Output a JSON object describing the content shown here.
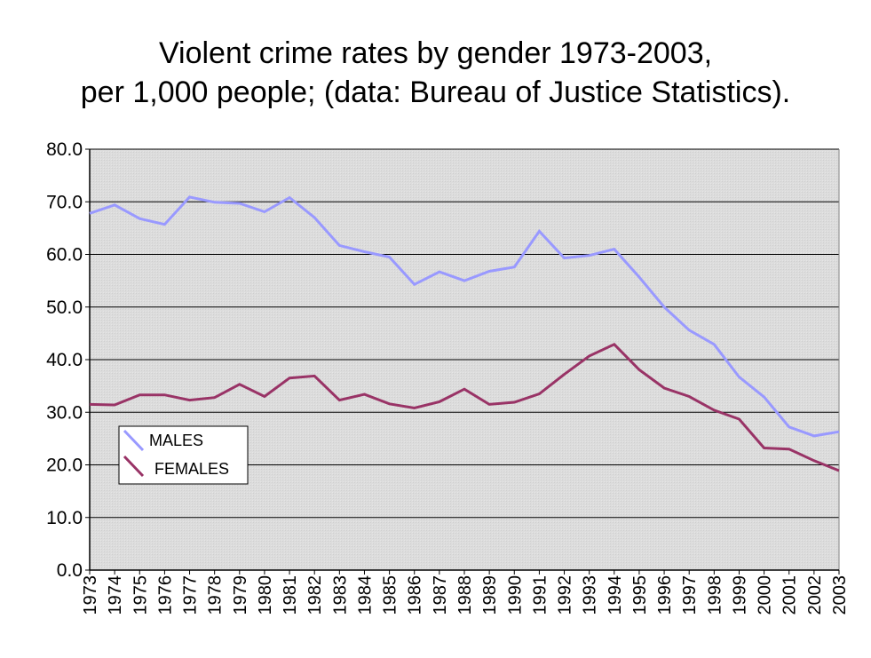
{
  "chart_data": {
    "type": "line",
    "title_lines": [
      "Violent crime rates by gender 1973-2003,",
      "per 1,000 people; (data: Bureau of Justice Statistics)."
    ],
    "xlabel": "",
    "ylabel": "",
    "ylim": [
      0,
      80
    ],
    "yticks": [
      "0.0",
      "10.0",
      "20.0",
      "30.0",
      "40.0",
      "50.0",
      "60.0",
      "70.0",
      "80.0"
    ],
    "grid": true,
    "legend_position": "left",
    "categories": [
      "1973",
      "1974",
      "1975",
      "1976",
      "1977",
      "1978",
      "1979",
      "1980",
      "1981",
      "1982",
      "1983",
      "1984",
      "1985",
      "1986",
      "1987",
      "1988",
      "1989",
      "1990",
      "1991",
      "1992",
      "1993",
      "1994",
      "1995",
      "1996",
      "1997",
      "1998",
      "1999",
      "2000",
      "2001",
      "2002",
      "2003"
    ],
    "series": [
      {
        "name": "MALES",
        "color": "#9999ff",
        "values": [
          67.8,
          69.4,
          66.8,
          65.7,
          70.9,
          69.9,
          69.7,
          68.1,
          70.8,
          67.0,
          61.7,
          60.5,
          59.5,
          54.3,
          56.7,
          55.0,
          56.8,
          57.6,
          64.4,
          59.3,
          59.8,
          61.0,
          55.7,
          50.0,
          45.6,
          42.9,
          36.7,
          32.9,
          27.2,
          25.5,
          26.3
        ]
      },
      {
        "name": "FEMALES",
        "color": "#993366",
        "values": [
          31.5,
          31.4,
          33.3,
          33.3,
          32.3,
          32.8,
          35.3,
          33.0,
          36.5,
          36.9,
          32.3,
          33.4,
          31.6,
          30.8,
          32.0,
          34.4,
          31.5,
          31.9,
          33.5,
          37.2,
          40.7,
          42.9,
          38.1,
          34.6,
          33.0,
          30.4,
          28.7,
          23.2,
          23.0,
          20.8,
          18.9
        ]
      }
    ]
  }
}
